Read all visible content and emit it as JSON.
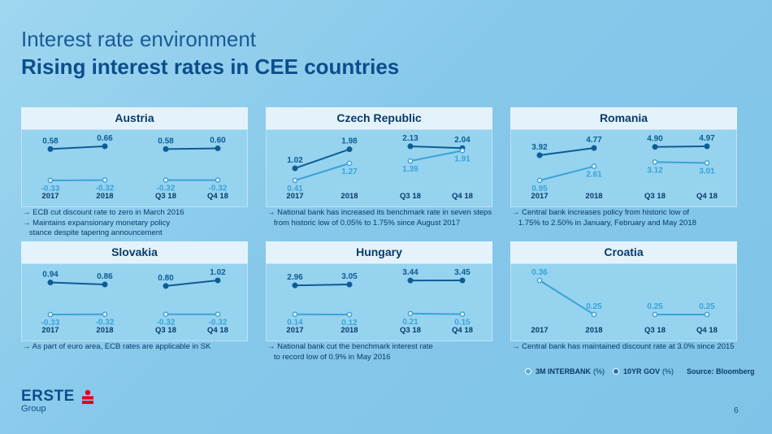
{
  "title": "Interest rate environment",
  "subtitle": "Rising interest rates in CEE countries",
  "legend": {
    "interbank_label": "3M INTERBANK",
    "interbank_unit": "(%)",
    "gov_label": "10YR GOV",
    "gov_unit": "(%)",
    "source": "Source: Bloomberg"
  },
  "logo": {
    "name": "ERSTE",
    "sub": "Group"
  },
  "page_number": "6",
  "colors": {
    "gov_line": "#0e5c94",
    "interbank_line": "#3aa3d8",
    "panel_bg": "#96d3ef"
  },
  "chart_data": [
    {
      "type": "line",
      "title": "Austria",
      "categories": [
        "2017",
        "2018",
        "Q3 18",
        "Q4 18"
      ],
      "series": [
        {
          "name": "10YR GOV (%)",
          "values": [
            0.58,
            0.66,
            0.58,
            0.6
          ],
          "labels": [
            "0.58",
            "0.66",
            "0.58",
            "0.60"
          ]
        },
        {
          "name": "3M INTERBANK (%)",
          "values": [
            -0.33,
            -0.32,
            -0.32,
            -0.32
          ],
          "labels": [
            "-0.33",
            "-0.32",
            "-0.32",
            "-0.32"
          ]
        }
      ],
      "notes": [
        "ECB cut discount rate to zero in March 2016",
        "Maintains expansionary monetary policy",
        "stance despite tapering announcement"
      ]
    },
    {
      "type": "line",
      "title": "Czech Republic",
      "categories": [
        "2017",
        "2018",
        "Q3 18",
        "Q4 18"
      ],
      "series": [
        {
          "name": "10YR GOV (%)",
          "values": [
            1.02,
            1.98,
            2.13,
            2.04
          ],
          "labels": [
            "1.02",
            "1.98",
            "2.13",
            "2.04"
          ]
        },
        {
          "name": "3M INTERBANK (%)",
          "values": [
            0.41,
            1.27,
            1.39,
            1.91
          ],
          "labels": [
            "0.41",
            "1.27",
            "1.39",
            "1.91"
          ]
        }
      ],
      "notes": [
        "National bank has increased its benchmark rate in seven steps",
        "from historic low of 0.05% to 1.75% since August 2017"
      ]
    },
    {
      "type": "line",
      "title": "Romania",
      "categories": [
        "2017",
        "2018",
        "Q3 18",
        "Q4 18"
      ],
      "series": [
        {
          "name": "10YR GOV (%)",
          "values": [
            3.92,
            4.77,
            4.9,
            4.97
          ],
          "labels": [
            "3.92",
            "4.77",
            "4.90",
            "4.97"
          ]
        },
        {
          "name": "3M INTERBANK (%)",
          "values": [
            0.95,
            2.61,
            3.12,
            3.01
          ],
          "labels": [
            "0.95",
            "2.61",
            "3.12",
            "3.01"
          ]
        }
      ],
      "notes": [
        "Central bank increases policy from historic low of",
        "1.75% to 2.50% in January, February and May 2018"
      ]
    },
    {
      "type": "line",
      "title": "Slovakia",
      "categories": [
        "2017",
        "2018",
        "Q3 18",
        "Q4 18"
      ],
      "series": [
        {
          "name": "10YR GOV (%)",
          "values": [
            0.94,
            0.86,
            0.8,
            1.02
          ],
          "labels": [
            "0.94",
            "0.86",
            "0.80",
            "1.02"
          ]
        },
        {
          "name": "3M INTERBANK (%)",
          "values": [
            -0.33,
            -0.32,
            -0.32,
            -0.32
          ],
          "labels": [
            "-0.33",
            "-0.32",
            "-0.32",
            "-0.32"
          ]
        }
      ],
      "notes": [
        "As part of euro area, ECB rates are applicable in SK"
      ]
    },
    {
      "type": "line",
      "title": "Hungary",
      "categories": [
        "2017",
        "2018",
        "Q3 18",
        "Q4 18"
      ],
      "series": [
        {
          "name": "10YR GOV (%)",
          "values": [
            2.96,
            3.05,
            3.44,
            3.45
          ],
          "labels": [
            "2.96",
            "3.05",
            "3.44",
            "3.45"
          ]
        },
        {
          "name": "3M INTERBANK (%)",
          "values": [
            0.14,
            0.12,
            0.21,
            0.15
          ],
          "labels": [
            "0.14",
            "0.12",
            "0.21",
            "0.15"
          ]
        }
      ],
      "notes": [
        "National bank cut the benchmark interest rate",
        "to record low of 0.9% in May 2016"
      ]
    },
    {
      "type": "line",
      "title": "Croatia",
      "categories": [
        "2017",
        "2018",
        "Q3 18",
        "Q4 18"
      ],
      "series": [
        {
          "name": "3M INTERBANK (%)",
          "values": [
            0.36,
            0.25,
            0.25,
            0.25
          ],
          "labels": [
            "0.36",
            "0.25",
            "0.25",
            "0.25"
          ]
        }
      ],
      "notes": [
        "Central bank has maintained discount rate at 3.0% since 2015"
      ]
    }
  ]
}
